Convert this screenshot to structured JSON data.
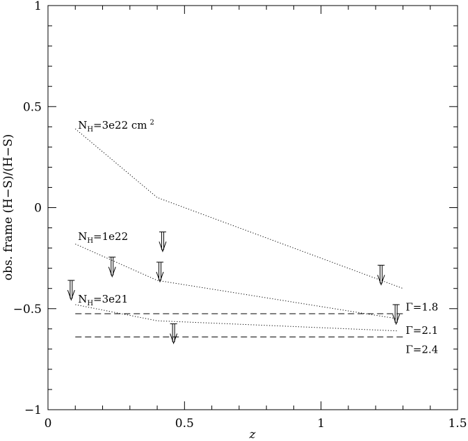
{
  "chart_data": {
    "type": "line",
    "title": "",
    "xlabel": "z",
    "ylabel": "obs. frame (H−S)/(H−S)",
    "xlim": [
      0,
      1.5
    ],
    "ylim": [
      -1,
      1
    ],
    "x_ticks": [
      0,
      0.5,
      1,
      1.5
    ],
    "x_tick_labels": [
      "0",
      "0.5",
      "1",
      "1.5"
    ],
    "y_ticks": [
      -1,
      -0.5,
      0,
      0.5,
      1
    ],
    "y_tick_labels": [
      "−1",
      "−0.5",
      "0",
      "0.5",
      "1"
    ],
    "grid": false,
    "series": [
      {
        "style": "dotted",
        "label_main": "N",
        "label_sub": "H",
        "label_rest": "=3e22 cm",
        "label_sup": "2",
        "label_at": [
          0.11,
          0.39
        ],
        "points": [
          [
            0.1,
            0.39
          ],
          [
            0.4,
            0.05
          ],
          [
            1.3,
            -0.4
          ]
        ]
      },
      {
        "style": "dotted",
        "label_main": "N",
        "label_sub": "H",
        "label_rest": "=1e22",
        "label_sup": "",
        "label_at": [
          0.11,
          -0.16
        ],
        "points": [
          [
            0.1,
            -0.18
          ],
          [
            0.4,
            -0.36
          ],
          [
            1.28,
            -0.55
          ]
        ]
      },
      {
        "style": "dotted",
        "label_main": "N",
        "label_sub": "H",
        "label_rest": "=3e21",
        "label_sup": "",
        "label_at": [
          0.11,
          -0.47
        ],
        "points": [
          [
            0.1,
            -0.48
          ],
          [
            0.4,
            -0.56
          ],
          [
            1.28,
            -0.61
          ]
        ]
      },
      {
        "style": "dashed",
        "label_main": "Γ=1.8",
        "label_sub": "",
        "label_rest": "",
        "label_sup": "",
        "label_at": [
          1.31,
          -0.51
        ],
        "points": [
          [
            0.1,
            -0.525
          ],
          [
            1.3,
            -0.525
          ]
        ]
      },
      {
        "style": "dashed",
        "label_main": "Γ=2.1",
        "label_sub": "",
        "label_rest": "",
        "label_sup": "",
        "label_at": [
          1.31,
          -0.625
        ],
        "points": [
          [
            0.1,
            -0.64
          ],
          [
            1.3,
            -0.64
          ]
        ]
      },
      {
        "style": "none",
        "label_main": "Γ=2.4",
        "label_sub": "",
        "label_rest": "",
        "label_sup": "",
        "label_at": [
          1.31,
          -0.72
        ],
        "points": []
      }
    ],
    "upper_limits": [
      {
        "x": 0.085,
        "y": -0.36
      },
      {
        "x": 0.235,
        "y": -0.245
      },
      {
        "x": 0.42,
        "y": -0.12
      },
      {
        "x": 0.41,
        "y": -0.27
      },
      {
        "x": 0.46,
        "y": -0.575
      },
      {
        "x": 1.22,
        "y": -0.285
      },
      {
        "x": 1.275,
        "y": -0.48
      }
    ]
  }
}
